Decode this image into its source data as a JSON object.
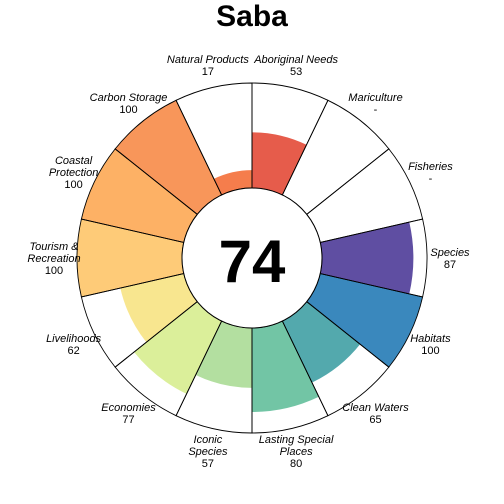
{
  "chart_data": {
    "type": "flower",
    "title": "Saba",
    "score": "74",
    "max_value": 100,
    "petals": [
      {
        "label": [
          "Natural Products"
        ],
        "value": 17,
        "value_text": "17",
        "color": "#f57d4c"
      },
      {
        "label": [
          "Aboriginal Needs"
        ],
        "value": 53,
        "value_text": "53",
        "color": "#e65c4b"
      },
      {
        "label": [
          "Mariculture"
        ],
        "value": null,
        "value_text": "-",
        "color": "#ffffff"
      },
      {
        "label": [
          "Fisheries"
        ],
        "value": null,
        "value_text": "-",
        "color": "#ffffff"
      },
      {
        "label": [
          "Species"
        ],
        "value": 87,
        "value_text": "87",
        "color": "#5f4ea2"
      },
      {
        "label": [
          "Habitats"
        ],
        "value": 100,
        "value_text": "100",
        "color": "#3a88bd"
      },
      {
        "label": [
          "Clean Waters"
        ],
        "value": 65,
        "value_text": "65",
        "color": "#53a9ad"
      },
      {
        "label": [
          "Lasting Special",
          "Places"
        ],
        "value": 80,
        "value_text": "80",
        "color": "#72c5a5"
      },
      {
        "label": [
          "Iconic",
          "Species"
        ],
        "value": 57,
        "value_text": "57",
        "color": "#b3dfa0"
      },
      {
        "label": [
          "Economies"
        ],
        "value": 77,
        "value_text": "77",
        "color": "#dbef9a"
      },
      {
        "label": [
          "Livelihoods"
        ],
        "value": 62,
        "value_text": "62",
        "color": "#f8e68f"
      },
      {
        "label": [
          "Tourism &",
          "Recreation"
        ],
        "value": 100,
        "value_text": "100",
        "color": "#fecb78"
      },
      {
        "label": [
          "Coastal",
          "Protection"
        ],
        "value": 100,
        "value_text": "100",
        "color": "#fdb165"
      },
      {
        "label": [
          "Carbon Storage"
        ],
        "value": 100,
        "value_text": "100",
        "color": "#f8965a"
      }
    ]
  }
}
